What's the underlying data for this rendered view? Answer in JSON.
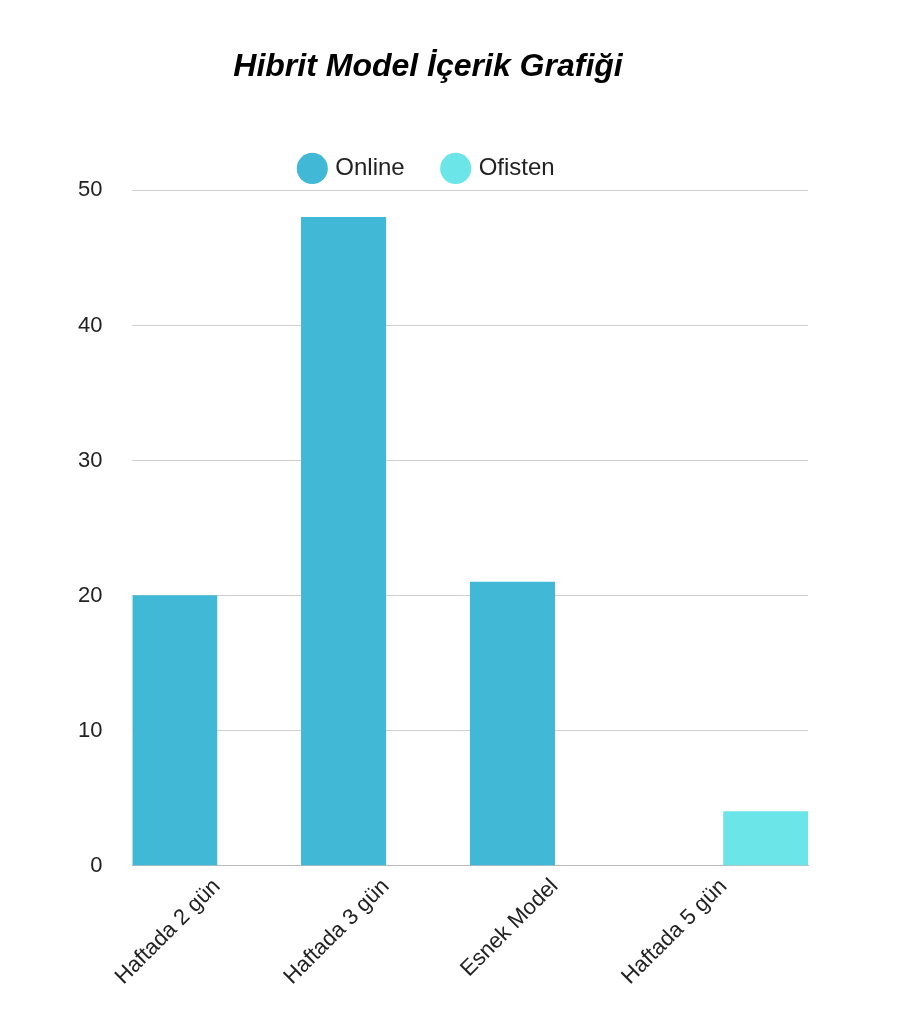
{
  "chart_data": {
    "type": "bar",
    "title": "Hibrit Model İçerik Grafiği",
    "categories": [
      "Haftada 2 gün",
      "Haftada 3 gün",
      "Esnek Model",
      "Haftada 5 gün"
    ],
    "series": [
      {
        "name": "Online",
        "color": "#41b8d5",
        "values": [
          20,
          48,
          21,
          null
        ]
      },
      {
        "name": "Ofisten",
        "color": "#6ce5e8",
        "values": [
          null,
          null,
          null,
          4
        ]
      }
    ],
    "ylim": [
      0,
      50
    ],
    "yticks": [
      0,
      10,
      20,
      30,
      40,
      50
    ],
    "grid": "y",
    "legend": "top"
  }
}
